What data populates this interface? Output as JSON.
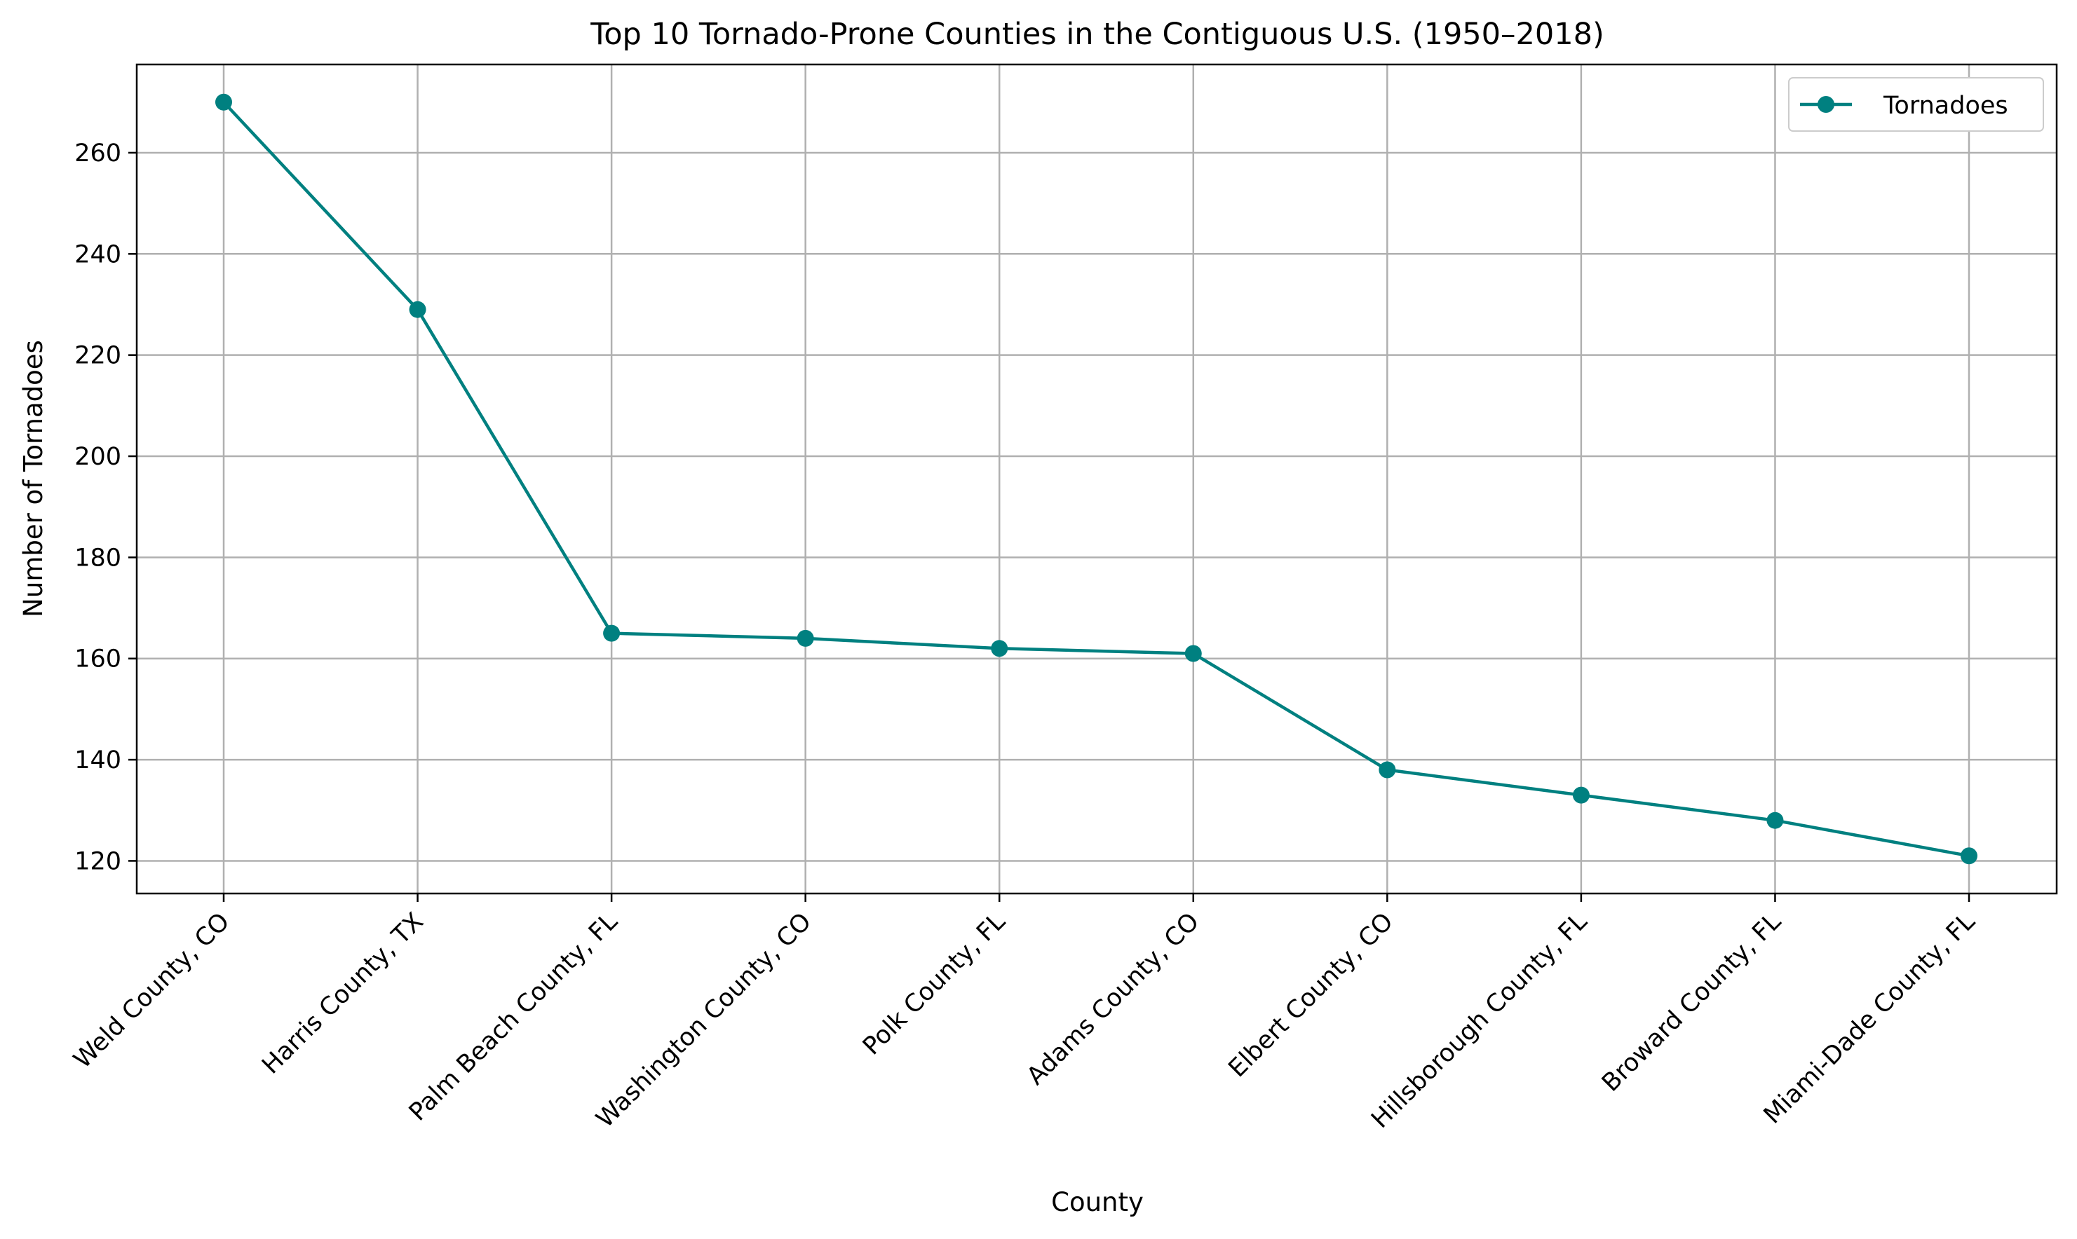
{
  "chart_data": {
    "type": "line",
    "title": "Top 10 Tornado-Prone Counties in the Contiguous U.S. (1950–2018)",
    "xlabel": "County",
    "ylabel": "Number of Tornadoes",
    "categories": [
      "Weld County, CO",
      "Harris County, TX",
      "Palm Beach County, FL",
      "Washington County, CO",
      "Polk County, FL",
      "Adams County, CO",
      "Elbert County, CO",
      "Hillsborough County, FL",
      "Broward County, FL",
      "Miami-Dade County, FL"
    ],
    "series": [
      {
        "name": "Tornadoes",
        "values": [
          270,
          229,
          165,
          164,
          162,
          161,
          138,
          133,
          128,
          121
        ],
        "color": "#008080",
        "marker": "circle"
      }
    ],
    "yticks": [
      120,
      140,
      160,
      180,
      200,
      220,
      240,
      260
    ],
    "ylim": [
      113.55,
      277.45
    ],
    "grid": true,
    "legend_position": "top-right"
  }
}
